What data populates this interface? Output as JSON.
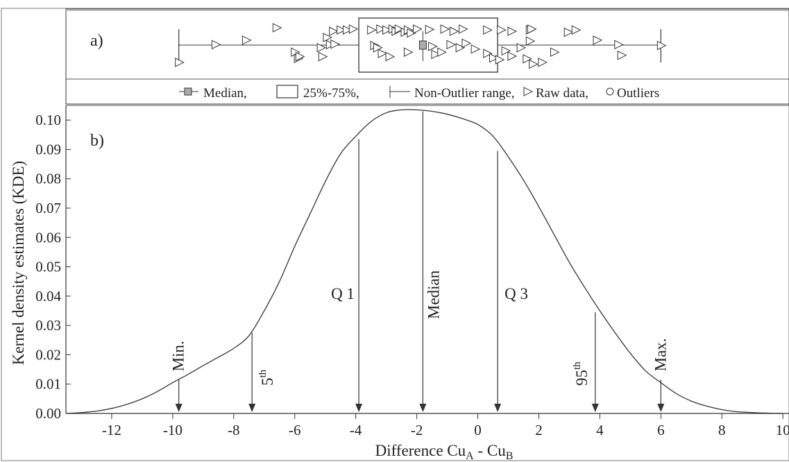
{
  "chart_data": [
    {
      "panel": "a)",
      "type": "box",
      "x_range": [
        -13.5,
        10.2
      ],
      "box": {
        "q1": -3.9,
        "q3": 0.65,
        "median": -1.8,
        "whisker_low": -9.8,
        "whisker_high": 6.0
      },
      "raw_data": [
        [
          -9.8,
          0.22
        ],
        [
          -8.6,
          0.62
        ],
        [
          -7.6,
          0.72
        ],
        [
          -6.6,
          1.0
        ],
        [
          -6.0,
          0.45
        ],
        [
          -5.9,
          0.31
        ],
        [
          -5.85,
          0.35
        ],
        [
          -5.15,
          0.55
        ],
        [
          -5.1,
          0.35
        ],
        [
          -4.95,
          0.78
        ],
        [
          -4.85,
          0.62
        ],
        [
          -4.75,
          0.92
        ],
        [
          -4.7,
          0.63
        ],
        [
          -4.5,
          0.95
        ],
        [
          -4.3,
          0.95
        ],
        [
          -4.1,
          0.97
        ],
        [
          -3.5,
          0.95
        ],
        [
          -3.2,
          0.97
        ],
        [
          -3.0,
          0.95
        ],
        [
          -2.8,
          0.97
        ],
        [
          -2.7,
          0.92
        ],
        [
          -2.6,
          0.97
        ],
        [
          -2.4,
          0.9
        ],
        [
          -2.3,
          0.95
        ],
        [
          -2.2,
          0.88
        ],
        [
          -2.0,
          0.97
        ],
        [
          -1.6,
          0.96
        ],
        [
          -1.1,
          0.97
        ],
        [
          -0.8,
          0.92
        ],
        [
          -0.5,
          0.97
        ],
        [
          0.3,
          0.95
        ],
        [
          -3.4,
          0.6
        ],
        [
          -3.3,
          0.55
        ],
        [
          -3.15,
          0.42
        ],
        [
          -2.9,
          0.35
        ],
        [
          -2.3,
          0.45
        ],
        [
          -1.5,
          0.58
        ],
        [
          -1.4,
          0.4
        ],
        [
          -1.2,
          0.45
        ],
        [
          -0.9,
          0.62
        ],
        [
          -0.6,
          0.55
        ],
        [
          -0.4,
          0.65
        ],
        [
          -0.1,
          0.52
        ],
        [
          0.3,
          0.42
        ],
        [
          0.5,
          0.32
        ],
        [
          0.7,
          0.28
        ],
        [
          0.9,
          0.48
        ],
        [
          1.1,
          0.36
        ],
        [
          1.4,
          0.55
        ],
        [
          1.6,
          0.3
        ],
        [
          1.8,
          0.18
        ],
        [
          2.1,
          0.22
        ],
        [
          0.75,
          0.95
        ],
        [
          1.1,
          0.92
        ],
        [
          1.7,
          0.95
        ],
        [
          1.75,
          0.97
        ],
        [
          1.7,
          0.7
        ],
        [
          2.5,
          0.45
        ],
        [
          2.95,
          0.9
        ],
        [
          3.2,
          0.95
        ],
        [
          3.9,
          0.72
        ],
        [
          4.6,
          0.62
        ],
        [
          4.7,
          0.38
        ],
        [
          6.0,
          0.6
        ]
      ],
      "legend": {
        "median": "Median,",
        "box": "25%-75%,",
        "range": "Non-Outlier range,",
        "raw": "Raw data,",
        "outliers": "Outliers"
      }
    },
    {
      "panel": "b)",
      "type": "line",
      "ylabel": "Kernel density estimates (KDE)",
      "xlabel": {
        "main": "Difference Cu",
        "sub1": "A",
        "mid": " - Cu",
        "sub2": "B"
      },
      "xlim": [
        -13.5,
        10.2
      ],
      "ylim": [
        0,
        0.105
      ],
      "x_ticks": [
        -12,
        -10,
        -8,
        -6,
        -4,
        -2,
        0,
        2,
        4,
        6,
        8,
        10
      ],
      "x_tick_labels": [
        "-12",
        "-10",
        "-8",
        "-6",
        "-4",
        "-2",
        "0",
        "2",
        "4",
        "6",
        "8",
        "10"
      ],
      "y_ticks": [
        0,
        0.01,
        0.02,
        0.03,
        0.04,
        0.05,
        0.06,
        0.07,
        0.08,
        0.09,
        0.1
      ],
      "y_tick_labels": [
        "0.00",
        "0.01",
        "0.02",
        "0.03",
        "0.04",
        "0.05",
        "0.06",
        "0.07",
        "0.08",
        "0.09",
        "0.10"
      ],
      "curve": {
        "x": [
          -13.5,
          -13.0,
          -12.5,
          -12.0,
          -11.5,
          -11.0,
          -10.5,
          -10.0,
          -9.5,
          -9.0,
          -8.5,
          -8.0,
          -7.5,
          -7.0,
          -6.5,
          -6.0,
          -5.5,
          -5.0,
          -4.5,
          -4.0,
          -3.5,
          -3.0,
          -2.5,
          -2.0,
          -1.5,
          -1.0,
          -0.5,
          0.0,
          0.5,
          1.0,
          1.5,
          2.0,
          2.5,
          3.0,
          3.5,
          4.0,
          4.5,
          5.0,
          5.5,
          6.0,
          6.5,
          7.0,
          7.5,
          8.0,
          8.5,
          9.0,
          9.5,
          10.0
        ],
        "y": [
          0.0,
          0.0003,
          0.0008,
          0.0017,
          0.0031,
          0.005,
          0.0075,
          0.0105,
          0.0133,
          0.0163,
          0.0192,
          0.0222,
          0.0265,
          0.035,
          0.045,
          0.057,
          0.068,
          0.079,
          0.0885,
          0.0945,
          0.0995,
          0.1025,
          0.1035,
          0.1035,
          0.103,
          0.102,
          0.1005,
          0.0985,
          0.0945,
          0.0875,
          0.0795,
          0.0705,
          0.061,
          0.0515,
          0.043,
          0.035,
          0.0275,
          0.0205,
          0.0145,
          0.0105,
          0.0068,
          0.0042,
          0.0025,
          0.0013,
          0.0006,
          0.0003,
          0.0001,
          0.0
        ]
      },
      "markers": [
        {
          "label": "Min.",
          "x": -9.8,
          "y": 0.0115,
          "sup": "",
          "label_pos": "above"
        },
        {
          "label": "5",
          "x": -7.4,
          "y": 0.0275,
          "sup": "th",
          "label_pos": "side"
        },
        {
          "label": "Q 1",
          "x": -3.9,
          "y": 0.0935,
          "sup": "",
          "label_pos": "left"
        },
        {
          "label": "Median",
          "x": -1.8,
          "y": 0.103,
          "sup": "",
          "label_pos": "mid"
        },
        {
          "label": "Q 3",
          "x": 0.65,
          "y": 0.0895,
          "sup": "",
          "label_pos": "right"
        },
        {
          "label": "95",
          "x": 3.85,
          "y": 0.0345,
          "sup": "th",
          "label_pos": "left-side"
        },
        {
          "label": "Max.",
          "x": 6.0,
          "y": 0.0115,
          "sup": "",
          "label_pos": "above"
        }
      ]
    }
  ]
}
